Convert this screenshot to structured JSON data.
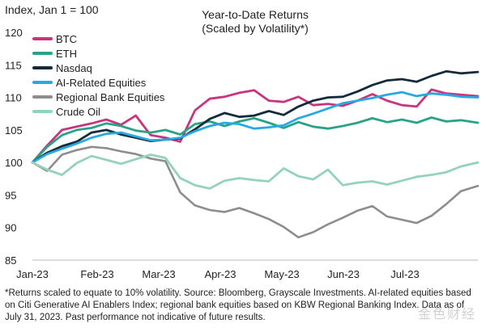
{
  "chart_data": {
    "type": "line",
    "title": "Year-to-Date Returns",
    "subtitle": "(Scaled by Volatility*)",
    "ylabel": "Index, Jan 1 = 100",
    "xlabel": "",
    "ylim": [
      85,
      120
    ],
    "yticks": [
      120,
      115,
      110,
      105,
      100,
      95,
      90,
      85
    ],
    "x_ticks": [
      "Jan-23",
      "Feb-23",
      "Mar-23",
      "Apr-23",
      "May-23",
      "Jun-23",
      "Jul-23"
    ],
    "grid": false,
    "legend": "top-left",
    "x": [
      "2023-01-01",
      "2023-01-08",
      "2023-01-15",
      "2023-01-22",
      "2023-01-29",
      "2023-02-05",
      "2023-02-12",
      "2023-02-19",
      "2023-02-26",
      "2023-03-05",
      "2023-03-12",
      "2023-03-19",
      "2023-03-26",
      "2023-04-02",
      "2023-04-09",
      "2023-04-16",
      "2023-04-23",
      "2023-04-30",
      "2023-05-07",
      "2023-05-14",
      "2023-05-21",
      "2023-05-28",
      "2023-06-04",
      "2023-06-11",
      "2023-06-18",
      "2023-06-25",
      "2023-07-02",
      "2023-07-09",
      "2023-07-16",
      "2023-07-23",
      "2023-07-31"
    ],
    "series": [
      {
        "name": "BTC",
        "color": "#c8357f",
        "values": [
          100,
          102.6,
          105,
          105.5,
          106,
          106.6,
          105.8,
          107.2,
          104.2,
          103.8,
          103.2,
          108,
          109.8,
          110.1,
          110.7,
          111.1,
          109.5,
          109.3,
          110.1,
          108.8,
          109,
          108.7,
          109.5,
          110.5,
          109.5,
          108.8,
          108.6,
          111.2,
          110.6,
          110.4,
          110.2
        ]
      },
      {
        "name": "ETH",
        "color": "#28a386",
        "values": [
          100,
          102.4,
          104.2,
          105,
          105.3,
          106,
          105.6,
          104.9,
          104.6,
          105,
          104.3,
          105.9,
          106.3,
          105.6,
          106.3,
          106.8,
          106.1,
          105.3,
          106.2,
          105.5,
          105.2,
          105.6,
          106.1,
          106.8,
          106.2,
          106.6,
          106.1,
          106.9,
          106.3,
          106.5,
          106.1
        ]
      },
      {
        "name": "Nasdaq",
        "color": "#132b3a",
        "values": [
          100,
          101.5,
          102.5,
          103.2,
          104.6,
          105,
          104.3,
          103.8,
          103.3,
          103.5,
          103.7,
          105.1,
          106.7,
          107.6,
          107,
          107.2,
          107.9,
          107.3,
          108.6,
          109.5,
          110,
          110.1,
          110.9,
          111.9,
          112.6,
          112.8,
          112.4,
          113.3,
          114,
          113.7,
          113.9
        ]
      },
      {
        "name": "AI-Related Equities",
        "color": "#27a9e1",
        "values": [
          100,
          101.3,
          102.1,
          102.9,
          103.8,
          104.4,
          104.6,
          104,
          103.4,
          103.5,
          103.8,
          104.8,
          105.6,
          106.1,
          105.9,
          105.2,
          105.4,
          105.7,
          106.8,
          107.5,
          108.3,
          109.1,
          109.5,
          109.9,
          110.4,
          110.8,
          110.2,
          110.6,
          110.4,
          110.1,
          110
        ]
      },
      {
        "name": "Regional Bank Equities",
        "color": "#8b8d8f",
        "values": [
          100,
          98.7,
          101.2,
          101.9,
          102.4,
          102.2,
          101.7,
          101.3,
          100.6,
          100.2,
          95.4,
          93.4,
          92.7,
          92.4,
          93,
          92.2,
          91.3,
          90.1,
          88.5,
          89.3,
          90.5,
          91.5,
          92.6,
          93.3,
          91.7,
          91.2,
          90.7,
          91.8,
          93.6,
          95.6,
          96.4
        ]
      },
      {
        "name": "Crude Oil",
        "color": "#95d2bd",
        "values": [
          100,
          98.9,
          98.1,
          99.9,
          101,
          100.4,
          99.8,
          100.5,
          101.2,
          100.7,
          97.6,
          96.5,
          96,
          97.2,
          97.6,
          97.3,
          97.1,
          99.1,
          97.9,
          97.4,
          98.9,
          96.5,
          96.9,
          97.1,
          96.6,
          97.2,
          97.8,
          98.1,
          98.5,
          99.4,
          100
        ]
      }
    ],
    "footnote": "*Returns scaled to equate to 10% volatility. Source: Bloomberg, Grayscale Investments. AI-related equities based on Citi Generative AI Enablers Index; regional bank equities based on KBW Regional Banking Index. Data as of July 31, 2023. Past performance not indicative of future results.",
    "watermark": "金色财经"
  }
}
